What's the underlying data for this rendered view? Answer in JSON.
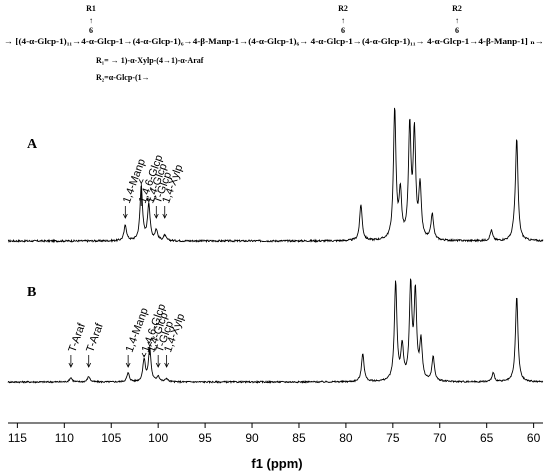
{
  "structure": {
    "branch_points": [
      {
        "r": "R1",
        "arrow": "↑",
        "pos": "6"
      },
      {
        "r": "R2",
        "arrow": "↑",
        "pos": "6"
      },
      {
        "r": "R2",
        "arrow": "↑",
        "pos": "6"
      }
    ],
    "formula": "→ [(4-α-Glcp-1)₁₁→4-α-Glcp-1→(4-α-Glcp-1)₆→4-β-Manp-1→(4-α-Glcp-1)₆→ 4-α-Glcp-1→(4-α-Glcp-1)₁₁→ 4-α-Glcp-1→4-β-Manp-1] ₙ→",
    "r1": "R₁= → 1)-α-Xylp-(4→1)-α-Araf",
    "r2": "R₂=α-Glcp-(1→"
  },
  "chart_data": {
    "type": "nmr-spectrum",
    "xlabel": "f1 (ppm)",
    "xlim": [
      116,
      59
    ],
    "x_reversed": true,
    "x_ticks": [
      115,
      110,
      105,
      100,
      95,
      90,
      85,
      80,
      75,
      70,
      65,
      60
    ],
    "panels": [
      {
        "label": "A",
        "annotations": [
          {
            "text": "1,4-Manp",
            "ppm": 103.5
          },
          {
            "text": "1,4,6-Glcp",
            "ppm": 101.8
          },
          {
            "text": "1,4-Glcp",
            "ppm": 101.0
          },
          {
            "text": "T-Glcp",
            "ppm": 100.2
          },
          {
            "text": "1,4-Xylp",
            "ppm": 99.3
          }
        ],
        "peaks": [
          {
            "ppm": 103.5,
            "height": 0.12
          },
          {
            "ppm": 101.8,
            "height": 0.42
          },
          {
            "ppm": 101.0,
            "height": 0.28
          },
          {
            "ppm": 100.2,
            "height": 0.08
          },
          {
            "ppm": 99.3,
            "height": 0.04
          },
          {
            "ppm": 78.4,
            "height": 0.28
          },
          {
            "ppm": 74.8,
            "height": 1.0
          },
          {
            "ppm": 74.2,
            "height": 0.35
          },
          {
            "ppm": 73.2,
            "height": 0.85
          },
          {
            "ppm": 72.7,
            "height": 0.8
          },
          {
            "ppm": 72.1,
            "height": 0.4
          },
          {
            "ppm": 70.8,
            "height": 0.2
          },
          {
            "ppm": 64.5,
            "height": 0.08
          },
          {
            "ppm": 62.1,
            "height": 0.05
          },
          {
            "ppm": 61.8,
            "height": 0.78
          }
        ]
      },
      {
        "label": "B",
        "annotations": [
          {
            "text": "T-Araf",
            "ppm": 109.3
          },
          {
            "text": "T-Araf",
            "ppm": 107.4
          },
          {
            "text": "1,4-Manp",
            "ppm": 103.2
          },
          {
            "text": "1,4,6-Glcp",
            "ppm": 101.5
          },
          {
            "text": "1,4-Glcp",
            "ppm": 100.9
          },
          {
            "text": "T-Glcp",
            "ppm": 100.0
          },
          {
            "text": "1,4-Xylp",
            "ppm": 99.1
          }
        ],
        "peaks": [
          {
            "ppm": 109.3,
            "height": 0.04
          },
          {
            "ppm": 107.4,
            "height": 0.05
          },
          {
            "ppm": 103.2,
            "height": 0.08
          },
          {
            "ppm": 101.5,
            "height": 0.2
          },
          {
            "ppm": 100.9,
            "height": 0.3
          },
          {
            "ppm": 100.0,
            "height": 0.05
          },
          {
            "ppm": 99.1,
            "height": 0.03
          },
          {
            "ppm": 78.2,
            "height": 0.26
          },
          {
            "ppm": 74.7,
            "height": 0.9
          },
          {
            "ppm": 74.0,
            "height": 0.3
          },
          {
            "ppm": 73.1,
            "height": 0.85
          },
          {
            "ppm": 72.6,
            "height": 0.78
          },
          {
            "ppm": 72.0,
            "height": 0.35
          },
          {
            "ppm": 70.7,
            "height": 0.22
          },
          {
            "ppm": 64.3,
            "height": 0.08
          },
          {
            "ppm": 61.8,
            "height": 0.78
          }
        ]
      }
    ]
  }
}
